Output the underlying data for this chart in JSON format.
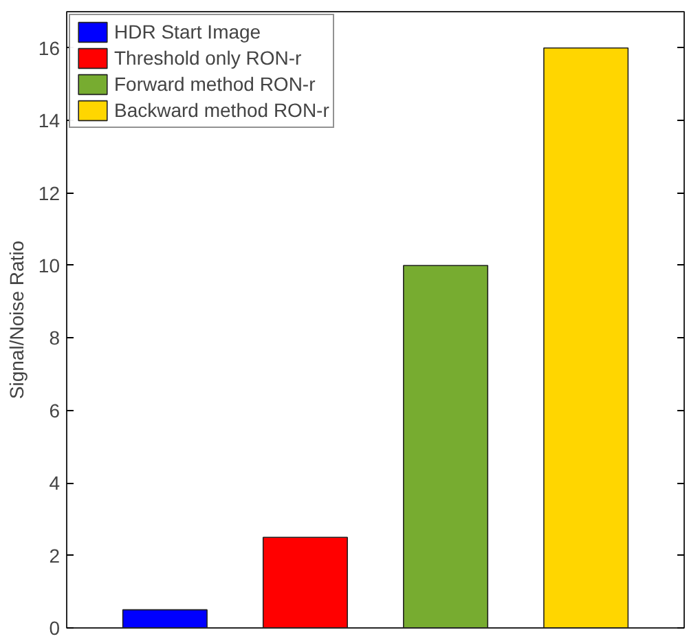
{
  "chart_data": {
    "type": "bar",
    "ylabel": "Signal/Noise Ratio",
    "categories": [
      null,
      null,
      null,
      null
    ],
    "series": [
      {
        "name": "HDR Start Image",
        "color": "#0000ff",
        "values": [
          0.5,
          null,
          null,
          null
        ]
      },
      {
        "name": "Threshold only RON-r",
        "color": "#ff0000",
        "values": [
          null,
          2.5,
          null,
          null
        ]
      },
      {
        "name": "Forward method RON-r",
        "color": "#77ac30",
        "values": [
          null,
          null,
          10,
          null
        ]
      },
      {
        "name": "Backward method RON-r",
        "color": "#ffd600",
        "values": [
          null,
          null,
          null,
          16
        ]
      }
    ],
    "ylim": [
      0,
      17
    ],
    "yticks": [
      0,
      2,
      4,
      6,
      8,
      10,
      12,
      14,
      16
    ],
    "grid": false,
    "legend": "top left"
  }
}
